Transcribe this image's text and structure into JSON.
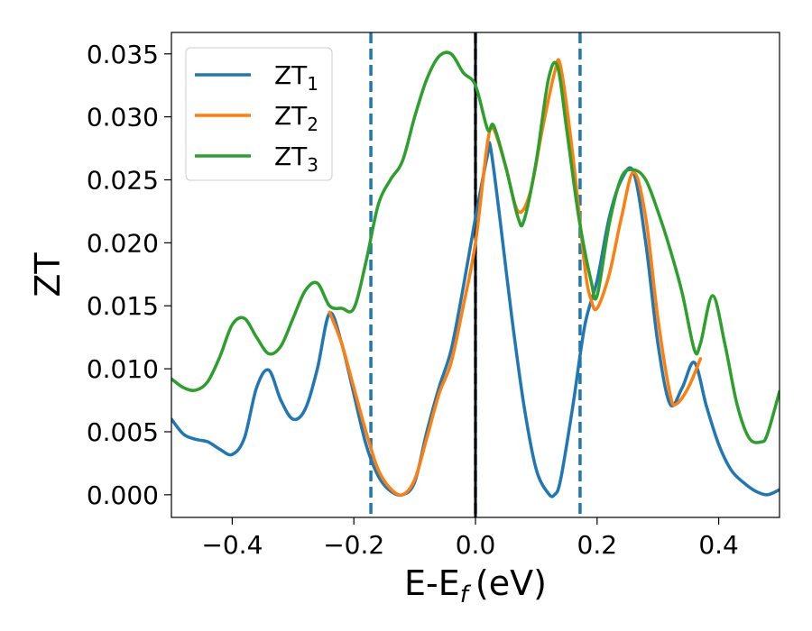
{
  "chart_data": {
    "type": "line",
    "xlabel": "E-E",
    "xlabel_sub": "f",
    "xlabel_unit": "(eV)",
    "ylabel": "ZT",
    "xlim": [
      -0.5,
      0.5
    ],
    "ylim": [
      -0.0018,
      0.0367
    ],
    "xticks": [
      -0.4,
      -0.2,
      0.0,
      0.2,
      0.4
    ],
    "xtick_labels": [
      "−0.4",
      "−0.2",
      "0.0",
      "0.2",
      "0.4"
    ],
    "yticks": [
      0.0,
      0.005,
      0.01,
      0.015,
      0.02,
      0.025,
      0.03,
      0.035
    ],
    "ytick_labels": [
      "0.000",
      "0.005",
      "0.010",
      "0.015",
      "0.020",
      "0.025",
      "0.030",
      "0.035"
    ],
    "grid": false,
    "legend_position": "top-left",
    "vlines": [
      {
        "x": -0.172,
        "style": "dashed",
        "color": "#1f77b4"
      },
      {
        "x": 0.0,
        "style": "dashed",
        "color": "#1f77b4"
      },
      {
        "x": 0.172,
        "style": "dashed",
        "color": "#1f77b4"
      },
      {
        "x": 0.0,
        "style": "solid",
        "color": "#000000"
      }
    ],
    "series": [
      {
        "name": "ZT",
        "sub": "1",
        "color": "#1f77b4",
        "x": [
          -0.5,
          -0.48,
          -0.46,
          -0.44,
          -0.42,
          -0.4,
          -0.38,
          -0.36,
          -0.34,
          -0.32,
          -0.3,
          -0.28,
          -0.26,
          -0.24,
          -0.22,
          -0.2,
          -0.18,
          -0.16,
          -0.14,
          -0.12,
          -0.1,
          -0.08,
          -0.06,
          -0.04,
          -0.02,
          0.0,
          0.02,
          0.025,
          0.04,
          0.06,
          0.08,
          0.1,
          0.12,
          0.13,
          0.14,
          0.16,
          0.18,
          0.2,
          0.22,
          0.24,
          0.26,
          0.28,
          0.3,
          0.32,
          0.34,
          0.36,
          0.38,
          0.4,
          0.42,
          0.44,
          0.46,
          0.48,
          0.5
        ],
        "y": [
          0.006,
          0.0048,
          0.0044,
          0.0042,
          0.0036,
          0.0032,
          0.0045,
          0.0085,
          0.0099,
          0.0075,
          0.006,
          0.0068,
          0.01,
          0.0144,
          0.012,
          0.008,
          0.004,
          0.0015,
          0.0003,
          0.0,
          0.001,
          0.005,
          0.0085,
          0.0115,
          0.0165,
          0.022,
          0.027,
          0.0275,
          0.022,
          0.014,
          0.007,
          0.002,
          0.0001,
          0.0,
          0.0012,
          0.007,
          0.0135,
          0.017,
          0.022,
          0.025,
          0.0256,
          0.02,
          0.012,
          0.0072,
          0.0085,
          0.0105,
          0.007,
          0.004,
          0.002,
          0.001,
          0.0003,
          0.0,
          0.0004
        ]
      },
      {
        "name": "ZT",
        "sub": "2",
        "color": "#ff7f0e",
        "x": [
          -0.24,
          -0.22,
          -0.2,
          -0.18,
          -0.16,
          -0.14,
          -0.12,
          -0.1,
          -0.08,
          -0.06,
          -0.04,
          -0.02,
          0.0,
          0.02,
          0.03,
          0.05,
          0.07,
          0.09,
          0.11,
          0.13,
          0.14,
          0.16,
          0.18,
          0.19,
          0.2,
          0.22,
          0.24,
          0.26,
          0.28,
          0.3,
          0.32,
          0.33,
          0.35,
          0.37
        ],
        "y": [
          0.0145,
          0.012,
          0.0085,
          0.005,
          0.002,
          0.0005,
          0.0,
          0.0012,
          0.0045,
          0.008,
          0.0105,
          0.015,
          0.02,
          0.028,
          0.029,
          0.026,
          0.0225,
          0.024,
          0.029,
          0.0335,
          0.034,
          0.027,
          0.018,
          0.0155,
          0.0148,
          0.0175,
          0.022,
          0.0256,
          0.022,
          0.014,
          0.008,
          0.0072,
          0.0085,
          0.0108
        ]
      },
      {
        "name": "ZT",
        "sub": "3",
        "color": "#2ca02c",
        "x": [
          -0.5,
          -0.48,
          -0.46,
          -0.44,
          -0.42,
          -0.4,
          -0.38,
          -0.36,
          -0.34,
          -0.32,
          -0.3,
          -0.28,
          -0.26,
          -0.24,
          -0.22,
          -0.2,
          -0.18,
          -0.16,
          -0.14,
          -0.12,
          -0.1,
          -0.08,
          -0.06,
          -0.04,
          -0.02,
          0.0,
          0.02,
          0.03,
          0.05,
          0.07,
          0.08,
          0.1,
          0.12,
          0.135,
          0.15,
          0.17,
          0.19,
          0.2,
          0.22,
          0.24,
          0.26,
          0.28,
          0.3,
          0.32,
          0.34,
          0.36,
          0.37,
          0.39,
          0.41,
          0.43,
          0.45,
          0.47,
          0.48,
          0.5
        ],
        "y": [
          0.0092,
          0.0085,
          0.0083,
          0.009,
          0.011,
          0.0135,
          0.014,
          0.0125,
          0.0112,
          0.0118,
          0.014,
          0.0162,
          0.0168,
          0.015,
          0.0148,
          0.0148,
          0.0185,
          0.023,
          0.025,
          0.0265,
          0.03,
          0.033,
          0.0348,
          0.035,
          0.0335,
          0.0325,
          0.029,
          0.0293,
          0.026,
          0.022,
          0.0218,
          0.0265,
          0.033,
          0.034,
          0.029,
          0.022,
          0.017,
          0.0158,
          0.0215,
          0.0252,
          0.0258,
          0.025,
          0.0225,
          0.0195,
          0.016,
          0.0115,
          0.012,
          0.0158,
          0.012,
          0.0072,
          0.0045,
          0.0042,
          0.0048,
          0.0082
        ]
      }
    ]
  }
}
